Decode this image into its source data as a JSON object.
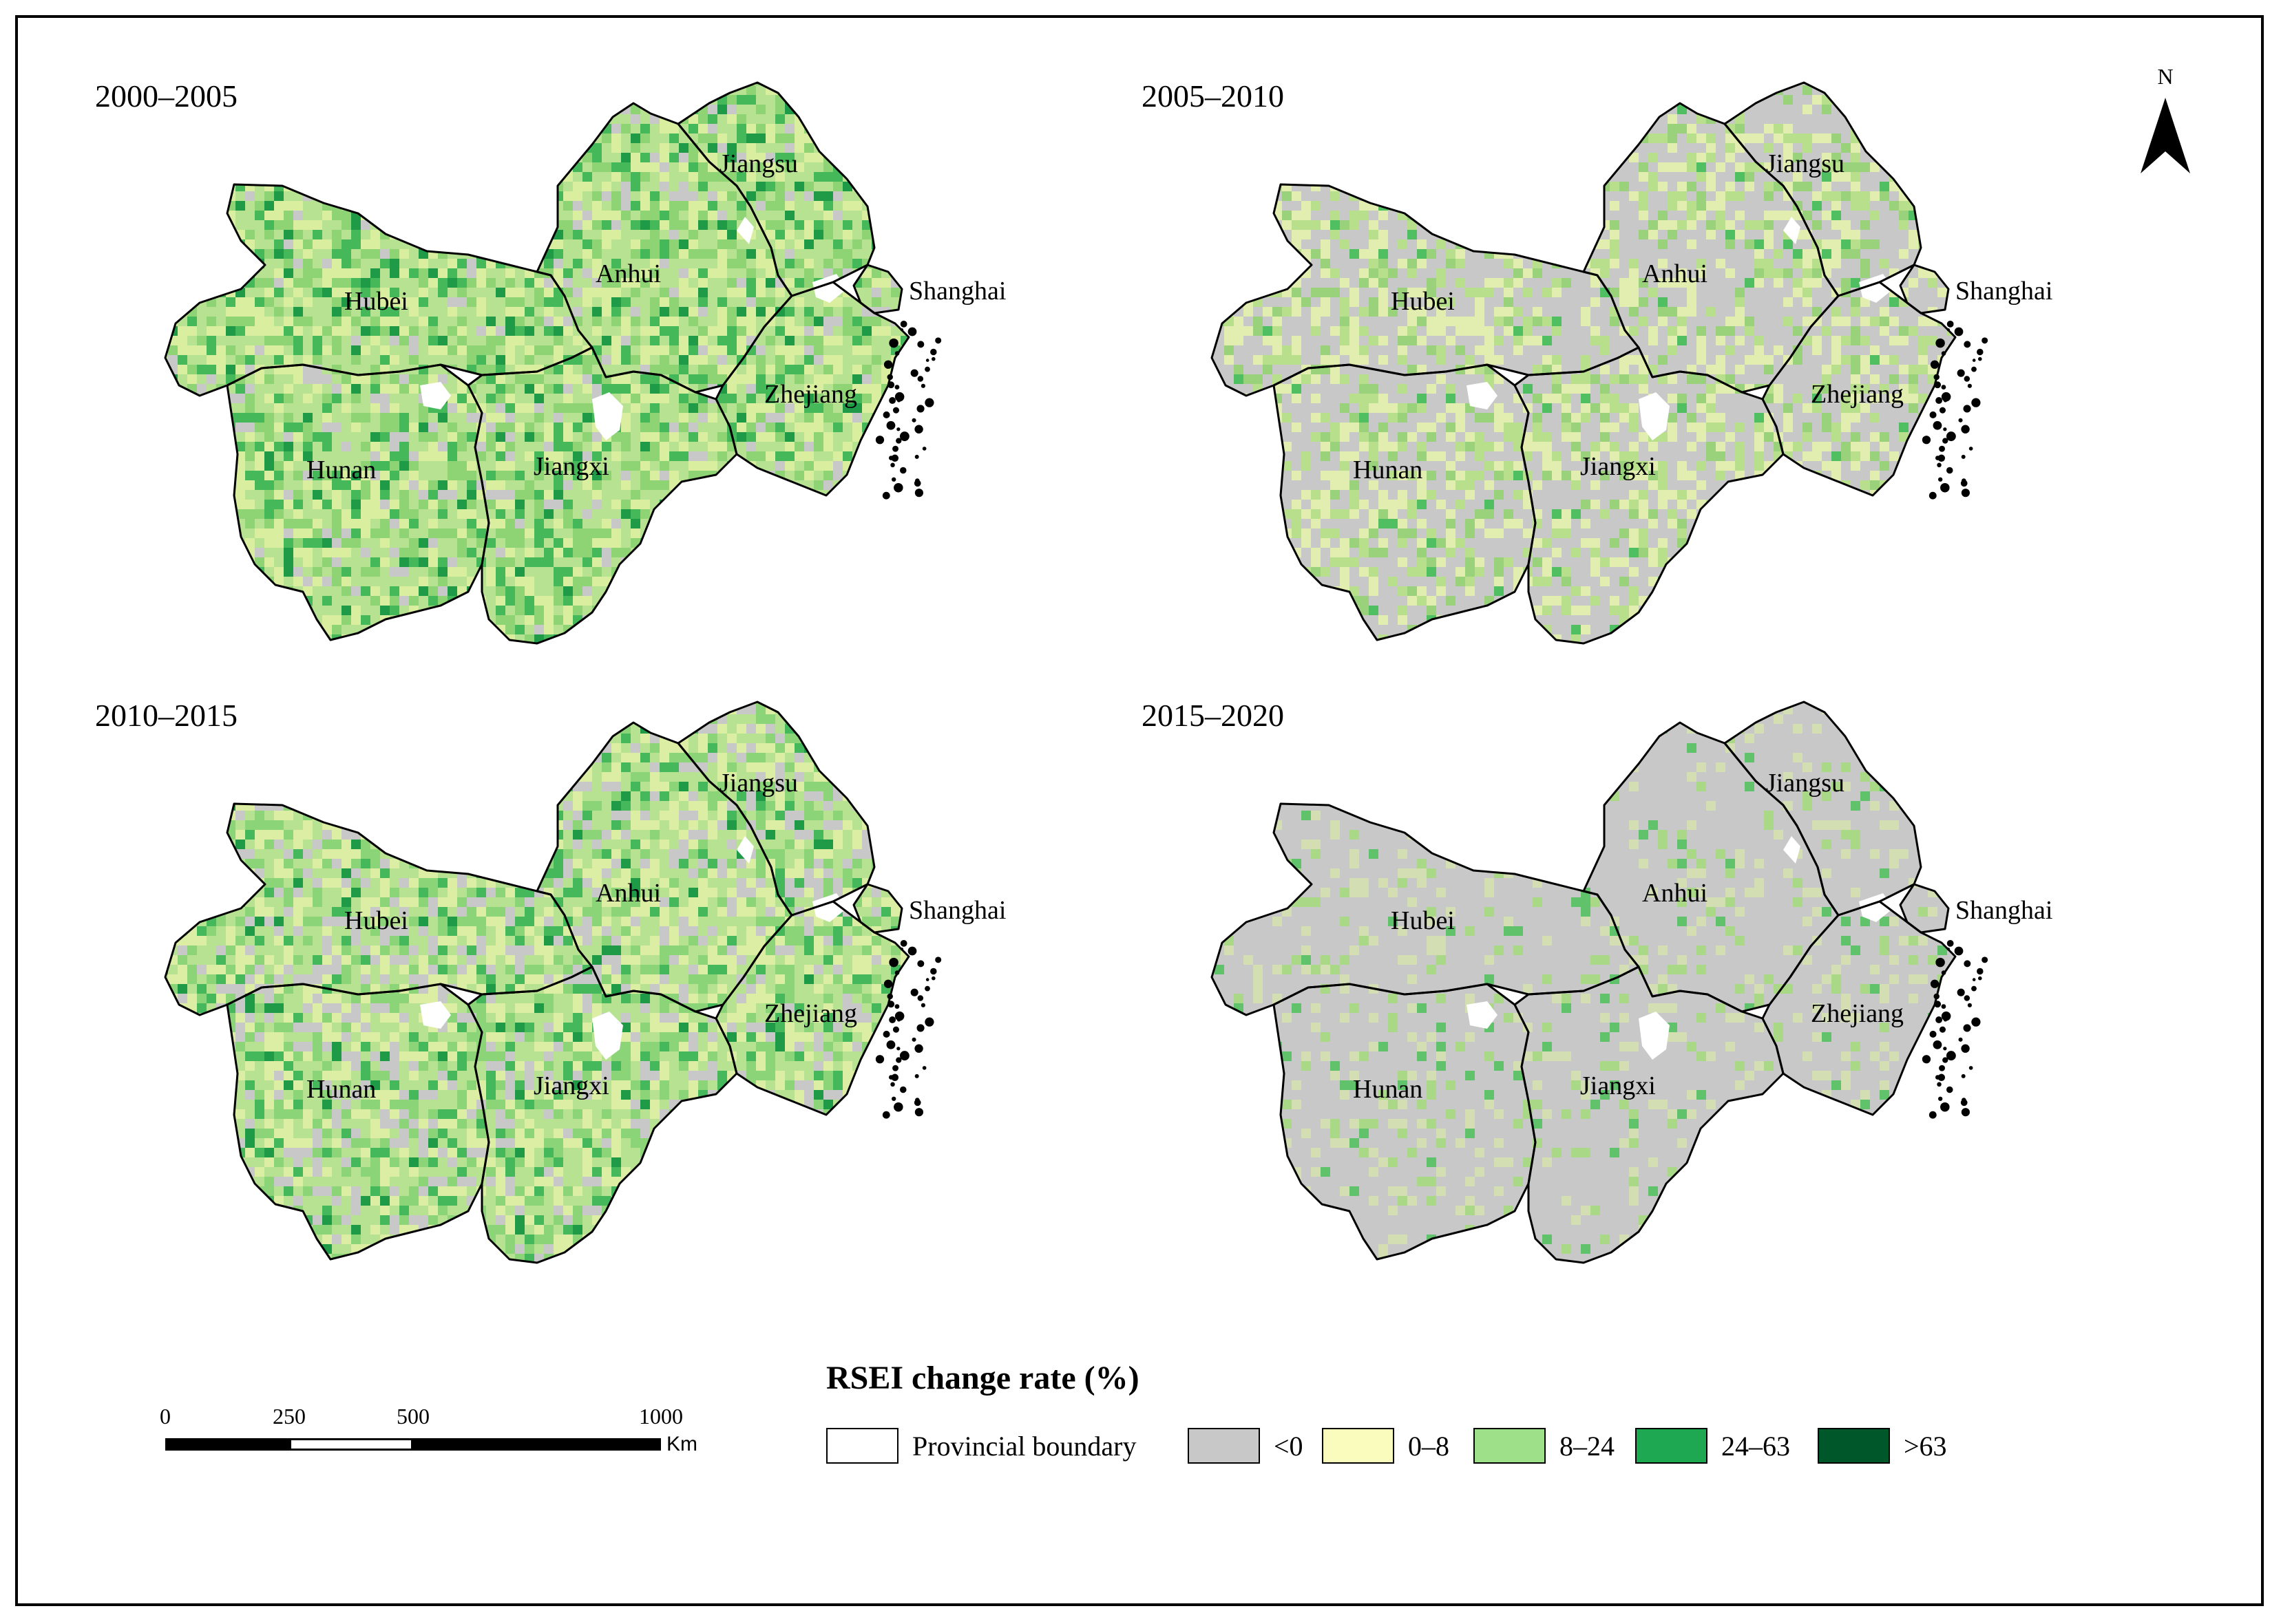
{
  "panels": [
    {
      "period": "2000–2005",
      "palette": [
        "#b7e291",
        "#d9ee9f",
        "#8ed474",
        "#45b95a",
        "#1f9a47",
        "#c8c8c8"
      ],
      "weights": [
        0.34,
        0.22,
        0.2,
        0.12,
        0.05,
        0.07
      ]
    },
    {
      "period": "2005–2010",
      "palette": [
        "#c8c8c8",
        "#e2eeb0",
        "#b8df8c",
        "#9ad27c",
        "#4fbf62"
      ],
      "weights": [
        0.52,
        0.22,
        0.14,
        0.1,
        0.02
      ]
    },
    {
      "period": "2010–2015",
      "palette": [
        "#b7e291",
        "#dbeea3",
        "#c8c8c8",
        "#8bd477",
        "#44b85a",
        "#1f9a47"
      ],
      "weights": [
        0.32,
        0.22,
        0.18,
        0.17,
        0.08,
        0.03
      ]
    },
    {
      "period": "2015–2020",
      "palette": [
        "#c8c8c8",
        "#d3dfb3",
        "#a9d887",
        "#60c36b"
      ],
      "weights": [
        0.8,
        0.1,
        0.07,
        0.03
      ]
    }
  ],
  "provinces": [
    "Jiangsu",
    "Anhui",
    "Hubei",
    "Shanghai",
    "Zhejiang",
    "Hunan",
    "Jiangxi"
  ],
  "north_label": "N",
  "scale": {
    "ticks": [
      "0",
      "250",
      "500",
      "1000"
    ],
    "tick_values": [
      0,
      250,
      500,
      1000
    ],
    "unit": "Km"
  },
  "legend": {
    "title": "RSEI change rate (%)",
    "items": [
      {
        "label": "Provincial boundary",
        "color": "#ffffff"
      },
      {
        "label": "<0",
        "color": "#c8c8c8"
      },
      {
        "label": "0–8",
        "color": "#fafcbe"
      },
      {
        "label": "8–24",
        "color": "#9ee08a"
      },
      {
        "label": "24–63",
        "color": "#1ea851"
      },
      {
        "label": ">63",
        "color": "#00582a"
      }
    ]
  },
  "colors": {
    "boundary": "#000000",
    "water": "#ffffff",
    "coast": "#000000"
  }
}
